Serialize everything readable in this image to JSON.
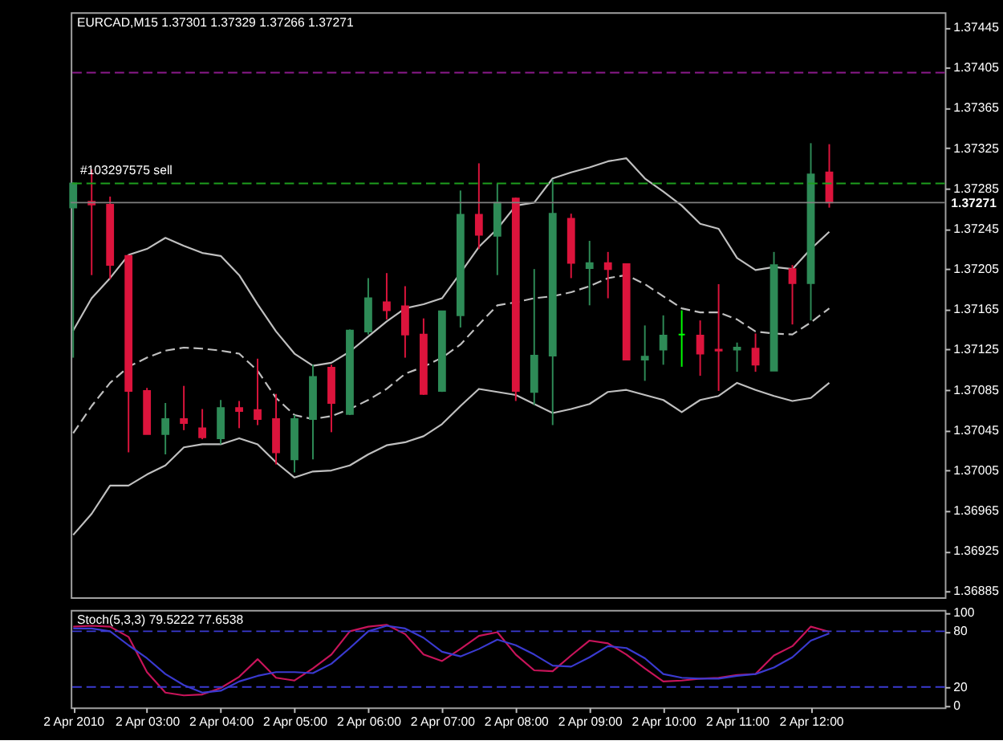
{
  "chart_data": [
    {
      "type": "candlestick",
      "title": "EURCAD,M15  1.37301 1.37329 1.37266 1.37271",
      "x": [
        "2010-04-02T02:00",
        "2010-04-02T02:15",
        "2010-04-02T02:30",
        "2010-04-02T02:45",
        "2010-04-02T03:00",
        "2010-04-02T03:15",
        "2010-04-02T03:30",
        "2010-04-02T03:45",
        "2010-04-02T04:00",
        "2010-04-02T04:15",
        "2010-04-02T04:30",
        "2010-04-02T04:45",
        "2010-04-02T05:00",
        "2010-04-02T05:15",
        "2010-04-02T05:30",
        "2010-04-02T05:45",
        "2010-04-02T06:00",
        "2010-04-02T06:15",
        "2010-04-02T06:30",
        "2010-04-02T06:45",
        "2010-04-02T07:00",
        "2010-04-02T07:15",
        "2010-04-02T07:30",
        "2010-04-02T07:45",
        "2010-04-02T08:00",
        "2010-04-02T08:15",
        "2010-04-02T08:30",
        "2010-04-02T08:45",
        "2010-04-02T09:00",
        "2010-04-02T09:15",
        "2010-04-02T09:30",
        "2010-04-02T09:45",
        "2010-04-02T10:00",
        "2010-04-02T10:15",
        "2010-04-02T10:30",
        "2010-04-02T10:45",
        "2010-04-02T11:00",
        "2010-04-02T11:15",
        "2010-04-02T11:30",
        "2010-04-02T11:45",
        "2010-04-02T12:00",
        "2010-04-02T12:15"
      ],
      "ohlc": [
        [
          1.37266,
          1.37291,
          1.37117,
          1.3729
        ],
        [
          1.37272,
          1.37304,
          1.37199,
          1.37269
        ],
        [
          1.37269,
          1.37277,
          1.37195,
          1.37209
        ],
        [
          1.37218,
          1.37219,
          1.37023,
          1.37084
        ],
        [
          1.37084,
          1.37087,
          1.37041,
          1.37041
        ],
        [
          1.37041,
          1.37072,
          1.37021,
          1.37056
        ],
        [
          1.37056,
          1.37089,
          1.37045,
          1.37052
        ],
        [
          1.37047,
          1.37066,
          1.37036,
          1.37038
        ],
        [
          1.37037,
          1.37075,
          1.37031,
          1.37067
        ],
        [
          1.37067,
          1.37074,
          1.37047,
          1.37064
        ],
        [
          1.37065,
          1.37116,
          1.3705,
          1.37056
        ],
        [
          1.37056,
          1.37081,
          1.37011,
          1.37023
        ],
        [
          1.37016,
          1.3706,
          1.37003,
          1.37056
        ],
        [
          1.37056,
          1.3711,
          1.37016,
          1.37098
        ],
        [
          1.37107,
          1.3711,
          1.37043,
          1.37072
        ],
        [
          1.37061,
          1.37145,
          1.3706,
          1.37144
        ],
        [
          1.37143,
          1.37196,
          1.3714,
          1.37176
        ],
        [
          1.37172,
          1.37201,
          1.37155,
          1.37164
        ],
        [
          1.37168,
          1.37188,
          1.37117,
          1.3714
        ],
        [
          1.3714,
          1.37156,
          1.3708,
          1.37081
        ],
        [
          1.37084,
          1.37163,
          1.37083,
          1.37163
        ],
        [
          1.37159,
          1.37283,
          1.37147,
          1.37259
        ],
        [
          1.37259,
          1.3731,
          1.37225,
          1.37239
        ],
        [
          1.37238,
          1.3729,
          1.37199,
          1.37271
        ],
        [
          1.37275,
          1.37276,
          1.37074,
          1.37084
        ],
        [
          1.37083,
          1.37205,
          1.3707,
          1.37119
        ],
        [
          1.37119,
          1.37294,
          1.3705,
          1.3726
        ],
        [
          1.37255,
          1.3726,
          1.37196,
          1.37211
        ],
        [
          1.37206,
          1.37233,
          1.37169,
          1.37211
        ],
        [
          1.37211,
          1.37222,
          1.37176,
          1.37205
        ],
        [
          1.3721,
          1.3721,
          1.37115,
          1.37115
        ],
        [
          1.37115,
          1.37149,
          1.37094,
          1.37118
        ],
        [
          1.37125,
          1.37159,
          1.3711,
          1.37139
        ],
        [
          1.3714,
          1.37164,
          1.37108,
          1.3714
        ],
        [
          1.37139,
          1.37154,
          1.37099,
          1.37121
        ],
        [
          1.37125,
          1.3719,
          1.37084,
          1.37124
        ],
        [
          1.37125,
          1.37132,
          1.37103,
          1.37127
        ],
        [
          1.37126,
          1.37141,
          1.37103,
          1.3711
        ],
        [
          1.37104,
          1.37222,
          1.37104,
          1.37209
        ],
        [
          1.37205,
          1.37209,
          1.3715,
          1.37191
        ],
        [
          1.37191,
          1.3733,
          1.37154,
          1.37299
        ],
        [
          1.37301,
          1.37329,
          1.37266,
          1.37271
        ]
      ],
      "colors": [
        "#2e8b57",
        "#dc143c",
        "#dc143c",
        "#dc143c",
        "#dc143c",
        "#2e8b57",
        "#dc143c",
        "#dc143c",
        "#2e8b57",
        "#dc143c",
        "#dc143c",
        "#dc143c",
        "#2e8b57",
        "#2e8b57",
        "#dc143c",
        "#2e8b57",
        "#2e8b57",
        "#dc143c",
        "#dc143c",
        "#dc143c",
        "#2e8b57",
        "#2e8b57",
        "#dc143c",
        "#2e8b57",
        "#dc143c",
        "#2e8b57",
        "#2e8b57",
        "#dc143c",
        "#2e8b57",
        "#dc143c",
        "#dc143c",
        "#2e8b57",
        "#2e8b57",
        "#00ff00",
        "#dc143c",
        "#dc143c",
        "#2e8b57",
        "#dc143c",
        "#2e8b57",
        "#dc143c",
        "#2e8b57",
        "#dc143c"
      ],
      "series": [
        {
          "type": "line",
          "color": "#c0c0c0",
          "values": [
            1.37144,
            1.37176,
            1.37196,
            1.37219,
            1.37225,
            1.37236,
            1.37228,
            1.37221,
            1.37218,
            1.37199,
            1.3717,
            1.37143,
            1.37121,
            1.37109,
            1.37112,
            1.37123,
            1.37138,
            1.37153,
            1.37166,
            1.3717,
            1.37176,
            1.37201,
            1.37227,
            1.37245,
            1.37268,
            1.37271,
            1.37295,
            1.37301,
            1.37306,
            1.37312,
            1.37315,
            1.37295,
            1.37282,
            1.37268,
            1.3725,
            1.37245,
            1.37216,
            1.37204,
            1.37207,
            1.37205,
            1.37225,
            1.37242
          ]
        },
        {
          "type": "line",
          "color": "#c0c0c0",
          "line_style": "dashed",
          "values": [
            1.37042,
            1.37069,
            1.37092,
            1.37108,
            1.37117,
            1.37124,
            1.37127,
            1.37126,
            1.37124,
            1.37121,
            1.37104,
            1.37077,
            1.3706,
            1.37056,
            1.37059,
            1.37066,
            1.37075,
            1.37086,
            1.37101,
            1.37108,
            1.37117,
            1.3713,
            1.3715,
            1.37169,
            1.37172,
            1.37176,
            1.37178,
            1.37182,
            1.37188,
            1.37196,
            1.37199,
            1.3719,
            1.37178,
            1.37166,
            1.37162,
            1.37162,
            1.37155,
            1.37143,
            1.37141,
            1.3714,
            1.37152,
            1.37166
          ]
        },
        {
          "type": "line",
          "color": "#c0c0c0",
          "values": [
            1.36941,
            1.36962,
            1.3699,
            1.3699,
            1.37001,
            1.3701,
            1.37028,
            1.37031,
            1.37031,
            1.37037,
            1.37031,
            1.37013,
            1.36998,
            1.37004,
            1.37005,
            1.3701,
            1.37021,
            1.3703,
            1.37033,
            1.37039,
            1.37051,
            1.37069,
            1.37086,
            1.37083,
            1.3708,
            1.37071,
            1.37062,
            1.37066,
            1.37071,
            1.37083,
            1.37085,
            1.3708,
            1.37075,
            1.37063,
            1.37075,
            1.37079,
            1.37092,
            1.37085,
            1.37079,
            1.37074,
            1.37077,
            1.37092
          ]
        }
      ],
      "xlim": [
        "2010-04-02T01:58",
        "2010-04-02T13:49"
      ],
      "ylim": [
        1.36879,
        1.3746
      ],
      "yticks": [
        1.37445,
        1.37405,
        1.37365,
        1.37325,
        1.37285,
        1.37245,
        1.37205,
        1.37165,
        1.37125,
        1.37085,
        1.37045,
        1.37005,
        1.36965,
        1.36925,
        1.36885
      ],
      "ref_lines": [
        {
          "axis": "y",
          "value": 1.374,
          "color": "#8b1a8b",
          "line_style": "dashed"
        },
        {
          "axis": "y",
          "value": 1.3729,
          "label": "#103297575 sell",
          "color": "#1e9e1e",
          "line_style": "dashed"
        },
        {
          "axis": "y",
          "value": 1.37271,
          "label": "1.37271",
          "color": "#808080",
          "line_style": "solid"
        }
      ],
      "tick_labels": "y"
    },
    {
      "type": "line",
      "title": "Stoch(5,3,3) 79.5222 77.6538",
      "x": [
        "2010-04-02T02:00",
        "2010-04-02T02:15",
        "2010-04-02T02:30",
        "2010-04-02T02:45",
        "2010-04-02T03:00",
        "2010-04-02T03:15",
        "2010-04-02T03:30",
        "2010-04-02T03:45",
        "2010-04-02T04:00",
        "2010-04-02T04:15",
        "2010-04-02T04:30",
        "2010-04-02T04:45",
        "2010-04-02T05:00",
        "2010-04-02T05:15",
        "2010-04-02T05:30",
        "2010-04-02T05:45",
        "2010-04-02T06:00",
        "2010-04-02T06:15",
        "2010-04-02T06:30",
        "2010-04-02T06:45",
        "2010-04-02T07:00",
        "2010-04-02T07:15",
        "2010-04-02T07:30",
        "2010-04-02T07:45",
        "2010-04-02T08:00",
        "2010-04-02T08:15",
        "2010-04-02T08:30",
        "2010-04-02T08:45",
        "2010-04-02T09:00",
        "2010-04-02T09:15",
        "2010-04-02T09:30",
        "2010-04-02T09:45",
        "2010-04-02T10:00",
        "2010-04-02T10:15",
        "2010-04-02T10:30",
        "2010-04-02T10:45",
        "2010-04-02T11:00",
        "2010-04-02T11:15",
        "2010-04-02T11:30",
        "2010-04-02T11:45",
        "2010-04-02T12:00",
        "2010-04-02T12:15"
      ],
      "series": [
        {
          "color": "#c8145a",
          "values": [
            85,
            86,
            85,
            74,
            36,
            14,
            11,
            12,
            19,
            31,
            50,
            30,
            27,
            40,
            55,
            80,
            85,
            87,
            77,
            55,
            48,
            61,
            75,
            79,
            55,
            38,
            37,
            54,
            70,
            67,
            55,
            40,
            26,
            27,
            29,
            30,
            33,
            34,
            54,
            64,
            85,
            79.5222
          ]
        },
        {
          "color": "#3a3ad0",
          "values": [
            83,
            83,
            80,
            65,
            51,
            34,
            22,
            14,
            16,
            26,
            32,
            36,
            36,
            35,
            45,
            62,
            80,
            86,
            83,
            73,
            58,
            53,
            61,
            71,
            65,
            55,
            43,
            42,
            52,
            64,
            62,
            51,
            34,
            30,
            29,
            29,
            32,
            34,
            41,
            52,
            70,
            77.6538
          ]
        }
      ],
      "xlim": [
        "2010-04-02T01:58",
        "2010-04-02T13:49"
      ],
      "xticks": [
        {
          "value": "2010-04-02T02:00",
          "label": "2 Apr 2010"
        },
        {
          "value": "2010-04-02T03:00",
          "label": "2 Apr 03:00"
        },
        {
          "value": "2010-04-02T04:00",
          "label": "2 Apr 04:00"
        },
        {
          "value": "2010-04-02T05:00",
          "label": "2 Apr 05:00"
        },
        {
          "value": "2010-04-02T06:00",
          "label": "2 Apr 06:00"
        },
        {
          "value": "2010-04-02T07:00",
          "label": "2 Apr 07:00"
        },
        {
          "value": "2010-04-02T08:00",
          "label": "2 Apr 08:00"
        },
        {
          "value": "2010-04-02T09:00",
          "label": "2 Apr 09:00"
        },
        {
          "value": "2010-04-02T10:00",
          "label": "2 Apr 10:00"
        },
        {
          "value": "2010-04-02T11:00",
          "label": "2 Apr 11:00"
        },
        {
          "value": "2010-04-02T12:00",
          "label": "2 Apr 12:00"
        }
      ],
      "ylim": [
        -2,
        103
      ],
      "yticks": [
        0,
        20,
        80,
        100
      ],
      "ref_lines": [
        {
          "axis": "y",
          "value": 20,
          "color": "#3a3ad0",
          "line_style": "dashed"
        },
        {
          "axis": "y",
          "value": 80,
          "color": "#3a3ad0",
          "line_style": "dashed"
        }
      ]
    }
  ]
}
